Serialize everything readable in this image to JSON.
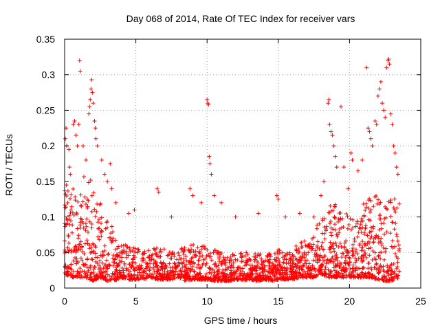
{
  "chart_data": {
    "type": "scatter",
    "title": "Day 068 of 2014, Rate Of TEC Index for receiver vars",
    "xlabel": "GPS time / hours",
    "ylabel": "ROTI / TECUs",
    "xlim": [
      0,
      25
    ],
    "ylim": [
      0,
      0.35
    ],
    "xticks": [
      "0",
      "5",
      "10",
      "15",
      "20",
      "25"
    ],
    "yticks": [
      "0",
      "0.05",
      "0.1",
      "0.15",
      "0.2",
      "0.25",
      "0.3",
      "0.35"
    ],
    "grid": true,
    "marker": "+",
    "color": "#ff0000",
    "series": [
      {
        "name": "ROTI",
        "points": [
          [
            0.05,
            0.21
          ],
          [
            0.1,
            0.225
          ],
          [
            0.15,
            0.2
          ],
          [
            0.3,
            0.195
          ],
          [
            0.35,
            0.17
          ],
          [
            0.4,
            0.16
          ],
          [
            0.6,
            0.23
          ],
          [
            0.7,
            0.235
          ],
          [
            0.8,
            0.215
          ],
          [
            0.9,
            0.2
          ],
          [
            1.0,
            0.23
          ],
          [
            1.05,
            0.32
          ],
          [
            1.1,
            0.305
          ],
          [
            1.3,
            0.2
          ],
          [
            1.5,
            0.18
          ],
          [
            1.7,
            0.245
          ],
          [
            1.75,
            0.255
          ],
          [
            1.8,
            0.265
          ],
          [
            1.85,
            0.28
          ],
          [
            1.9,
            0.293
          ],
          [
            1.95,
            0.275
          ],
          [
            2.0,
            0.26
          ],
          [
            2.1,
            0.235
          ],
          [
            2.15,
            0.225
          ],
          [
            2.2,
            0.21
          ],
          [
            2.3,
            0.2
          ],
          [
            2.6,
            0.18
          ],
          [
            2.8,
            0.16
          ],
          [
            3.0,
            0.15
          ],
          [
            3.2,
            0.175
          ],
          [
            3.3,
            0.14
          ],
          [
            3.6,
            0.12
          ],
          [
            4.5,
            0.105
          ],
          [
            4.9,
            0.11
          ],
          [
            6.5,
            0.14
          ],
          [
            6.6,
            0.135
          ],
          [
            7.5,
            0.1
          ],
          [
            8.8,
            0.14
          ],
          [
            9.0,
            0.13
          ],
          [
            9.6,
            0.12
          ],
          [
            10.0,
            0.265
          ],
          [
            10.05,
            0.26
          ],
          [
            10.1,
            0.258
          ],
          [
            10.15,
            0.185
          ],
          [
            10.2,
            0.175
          ],
          [
            10.3,
            0.16
          ],
          [
            10.5,
            0.13
          ],
          [
            11.0,
            0.12
          ],
          [
            12.0,
            0.1
          ],
          [
            13.6,
            0.105
          ],
          [
            14.9,
            0.13
          ],
          [
            15.0,
            0.125
          ],
          [
            15.5,
            0.1
          ],
          [
            16.5,
            0.105
          ],
          [
            17.5,
            0.1
          ],
          [
            18.0,
            0.13
          ],
          [
            18.2,
            0.15
          ],
          [
            18.5,
            0.26
          ],
          [
            18.55,
            0.265
          ],
          [
            18.6,
            0.23
          ],
          [
            18.7,
            0.22
          ],
          [
            18.8,
            0.215
          ],
          [
            18.9,
            0.2
          ],
          [
            19.0,
            0.185
          ],
          [
            19.1,
            0.17
          ],
          [
            19.4,
            0.255
          ],
          [
            19.6,
            0.17
          ],
          [
            19.9,
            0.14
          ],
          [
            20.1,
            0.19
          ],
          [
            20.2,
            0.18
          ],
          [
            20.6,
            0.165
          ],
          [
            20.9,
            0.18
          ],
          [
            21.2,
            0.31
          ],
          [
            21.3,
            0.225
          ],
          [
            21.4,
            0.22
          ],
          [
            21.5,
            0.21
          ],
          [
            21.6,
            0.2
          ],
          [
            21.8,
            0.235
          ],
          [
            21.9,
            0.23
          ],
          [
            22.0,
            0.27
          ],
          [
            22.1,
            0.28
          ],
          [
            22.2,
            0.29
          ],
          [
            22.3,
            0.26
          ],
          [
            22.4,
            0.25
          ],
          [
            22.5,
            0.24
          ],
          [
            22.6,
            0.31
          ],
          [
            22.7,
            0.32
          ],
          [
            22.75,
            0.322
          ],
          [
            22.8,
            0.315
          ],
          [
            22.9,
            0.245
          ],
          [
            23.0,
            0.23
          ],
          [
            23.1,
            0.2
          ],
          [
            23.2,
            0.19
          ],
          [
            23.3,
            0.17
          ],
          [
            23.4,
            0.16
          ]
        ],
        "envelope": {
          "x": [
            0.0,
            0.5,
            1.0,
            1.5,
            2.0,
            2.5,
            3.0,
            3.5,
            4.0,
            4.5,
            5.0,
            5.5,
            6.0,
            6.5,
            7.0,
            7.5,
            8.0,
            8.5,
            9.0,
            9.5,
            10.0,
            10.5,
            11.0,
            11.5,
            12.0,
            12.5,
            13.0,
            13.5,
            14.0,
            14.5,
            15.0,
            15.5,
            16.0,
            16.5,
            17.0,
            17.5,
            18.0,
            18.5,
            19.0,
            19.5,
            20.0,
            20.5,
            21.0,
            21.5,
            22.0,
            22.5,
            23.0,
            23.5
          ],
          "low": [
            0.02,
            0.015,
            0.015,
            0.015,
            0.01,
            0.015,
            0.01,
            0.01,
            0.015,
            0.012,
            0.012,
            0.012,
            0.015,
            0.012,
            0.012,
            0.012,
            0.015,
            0.01,
            0.012,
            0.012,
            0.012,
            0.01,
            0.01,
            0.01,
            0.012,
            0.01,
            0.012,
            0.01,
            0.012,
            0.01,
            0.012,
            0.012,
            0.012,
            0.015,
            0.015,
            0.015,
            0.02,
            0.015,
            0.015,
            0.015,
            0.015,
            0.015,
            0.015,
            0.015,
            0.012,
            0.01,
            0.01,
            0.015
          ],
          "high": [
            0.16,
            0.14,
            0.15,
            0.16,
            0.15,
            0.12,
            0.1,
            0.08,
            0.065,
            0.06,
            0.06,
            0.055,
            0.055,
            0.06,
            0.055,
            0.05,
            0.055,
            0.06,
            0.065,
            0.06,
            0.06,
            0.055,
            0.05,
            0.05,
            0.05,
            0.05,
            0.05,
            0.05,
            0.05,
            0.05,
            0.055,
            0.055,
            0.06,
            0.065,
            0.07,
            0.08,
            0.1,
            0.12,
            0.12,
            0.11,
            0.1,
            0.1,
            0.12,
            0.13,
            0.13,
            0.12,
            0.13,
            0.12
          ]
        }
      }
    ]
  }
}
